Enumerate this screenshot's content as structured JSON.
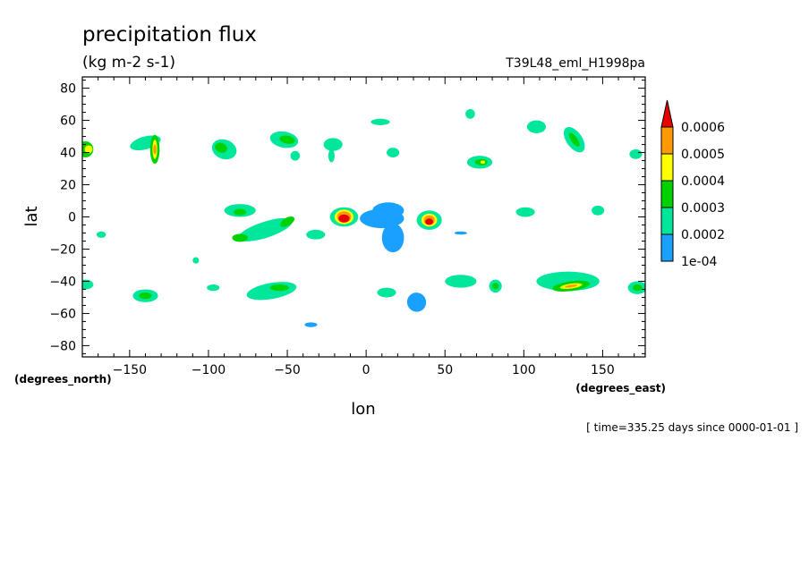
{
  "chart_data": {
    "type": "heatmap",
    "title": "precipitation flux",
    "units": "(kg m-2 s-1)",
    "run_label": "T39L48_eml_H1998pa",
    "xlabel": "lon",
    "ylabel": "lat",
    "x_units_label": "(degrees_east)",
    "y_units_label": "(degrees_north)",
    "time_label": "[ time=335.25 days since 0000-01-01 ]",
    "xlim": [
      -180,
      177
    ],
    "ylim": [
      -87,
      87
    ],
    "x_ticks": [
      -150,
      -100,
      -50,
      0,
      50,
      100,
      150
    ],
    "x_tick_labels": [
      "−150",
      "−100",
      "−50",
      "0",
      "50",
      "100",
      "150"
    ],
    "y_ticks": [
      80,
      60,
      40,
      20,
      0,
      -20,
      -40,
      -60,
      -80
    ],
    "y_tick_labels": [
      "80",
      "60",
      "40",
      "20",
      "0",
      "−20",
      "−40",
      "−60",
      "−80"
    ],
    "colorbar": {
      "levels": [
        "1e-04",
        "0.0002",
        "0.0003",
        "0.0004",
        "0.0005",
        "0.0006"
      ],
      "colors": [
        "#1aa0ff",
        "#00e69a",
        "#00d200",
        "#ffff00",
        "#ff9900",
        "#e60000"
      ],
      "extend": "max"
    },
    "regions": [
      {
        "lon": -178,
        "lat": 42,
        "rx": 5,
        "ry": 5,
        "rot": 0,
        "level": 2
      },
      {
        "lon": -176,
        "lat": 42,
        "rx": 2.5,
        "ry": 2.5,
        "rot": 0,
        "level": 3
      },
      {
        "lon": -140,
        "lat": 46,
        "rx": 10,
        "ry": 4,
        "rot": -15,
        "level": 1
      },
      {
        "lon": -134,
        "lat": 42,
        "rx": 3,
        "ry": 9,
        "rot": 0,
        "level": 2
      },
      {
        "lon": -134,
        "lat": 42,
        "rx": 1.5,
        "ry": 6,
        "rot": 0,
        "level": 3
      },
      {
        "lon": -134,
        "lat": 42,
        "rx": 1,
        "ry": 3,
        "rot": 0,
        "level": 4
      },
      {
        "lon": -90,
        "lat": 42,
        "rx": 8,
        "ry": 6,
        "rot": 20,
        "level": 1
      },
      {
        "lon": -92,
        "lat": 43,
        "rx": 4,
        "ry": 3,
        "rot": 20,
        "level": 2
      },
      {
        "lon": -52,
        "lat": 48,
        "rx": 9,
        "ry": 5,
        "rot": 10,
        "level": 1
      },
      {
        "lon": -50,
        "lat": 48,
        "rx": 5,
        "ry": 2.5,
        "rot": 10,
        "level": 2
      },
      {
        "lon": -45,
        "lat": 38,
        "rx": 3,
        "ry": 3,
        "rot": 0,
        "level": 1
      },
      {
        "lon": -21,
        "lat": 45,
        "rx": 6,
        "ry": 4,
        "rot": 0,
        "level": 1
      },
      {
        "lon": -22,
        "lat": 38,
        "rx": 2,
        "ry": 4,
        "rot": 0,
        "level": 1
      },
      {
        "lon": 9,
        "lat": 59,
        "rx": 6,
        "ry": 2,
        "rot": 0,
        "level": 1
      },
      {
        "lon": 17,
        "lat": 40,
        "rx": 4,
        "ry": 3,
        "rot": 0,
        "level": 1
      },
      {
        "lon": 72,
        "lat": 34,
        "rx": 8,
        "ry": 4,
        "rot": 0,
        "level": 1
      },
      {
        "lon": 73,
        "lat": 34,
        "rx": 4,
        "ry": 2,
        "rot": 0,
        "level": 2
      },
      {
        "lon": 74,
        "lat": 34,
        "rx": 1.5,
        "ry": 1,
        "rot": 0,
        "level": 3
      },
      {
        "lon": 66,
        "lat": 64,
        "rx": 3,
        "ry": 3,
        "rot": 0,
        "level": 1
      },
      {
        "lon": 108,
        "lat": 56,
        "rx": 6,
        "ry": 4,
        "rot": 0,
        "level": 1
      },
      {
        "lon": 132,
        "lat": 48,
        "rx": 5,
        "ry": 9,
        "rot": -35,
        "level": 1
      },
      {
        "lon": 132,
        "lat": 48,
        "rx": 2,
        "ry": 5,
        "rot": -35,
        "level": 2
      },
      {
        "lon": 171,
        "lat": 39,
        "rx": 4,
        "ry": 3,
        "rot": 0,
        "level": 1
      },
      {
        "lon": -80,
        "lat": 4,
        "rx": 10,
        "ry": 4,
        "rot": 0,
        "level": 1
      },
      {
        "lon": -80,
        "lat": 3,
        "rx": 4,
        "ry": 2,
        "rot": 0,
        "level": 2
      },
      {
        "lon": -64,
        "lat": -8,
        "rx": 18,
        "ry": 5,
        "rot": -18,
        "level": 1
      },
      {
        "lon": -50,
        "lat": -3,
        "rx": 5,
        "ry": 2.5,
        "rot": -30,
        "level": 2
      },
      {
        "lon": -80,
        "lat": -13,
        "rx": 5,
        "ry": 2.5,
        "rot": 0,
        "level": 2
      },
      {
        "lon": -32,
        "lat": -11,
        "rx": 6,
        "ry": 3,
        "rot": 0,
        "level": 1
      },
      {
        "lon": -14,
        "lat": 0,
        "rx": 9,
        "ry": 6,
        "rot": 0,
        "level": 1
      },
      {
        "lon": -14,
        "lat": 0,
        "rx": 6,
        "ry": 4.5,
        "rot": 0,
        "level": 3
      },
      {
        "lon": -14,
        "lat": 0,
        "rx": 4.5,
        "ry": 3.5,
        "rot": 0,
        "level": 4
      },
      {
        "lon": -14,
        "lat": -1,
        "rx": 3.5,
        "ry": 2.5,
        "rot": 0,
        "level": 5
      },
      {
        "lon": 10,
        "lat": -1,
        "rx": 14,
        "ry": 6,
        "rot": 0,
        "level": 0
      },
      {
        "lon": 17,
        "lat": -13,
        "rx": 7,
        "ry": 9,
        "rot": 0,
        "level": 0
      },
      {
        "lon": 14,
        "lat": 4,
        "rx": 10,
        "ry": 5,
        "rot": 0,
        "level": 0
      },
      {
        "lon": 40,
        "lat": -2,
        "rx": 8,
        "ry": 6,
        "rot": 0,
        "level": 1
      },
      {
        "lon": 40,
        "lat": -2,
        "rx": 5,
        "ry": 4,
        "rot": 0,
        "level": 3
      },
      {
        "lon": 40,
        "lat": -2,
        "rx": 3.5,
        "ry": 3,
        "rot": 0,
        "level": 4
      },
      {
        "lon": 40,
        "lat": -3,
        "rx": 2.5,
        "ry": 2,
        "rot": 0,
        "level": 5
      },
      {
        "lon": 60,
        "lat": -10,
        "rx": 4,
        "ry": 1,
        "rot": 0,
        "level": 0
      },
      {
        "lon": 101,
        "lat": 3,
        "rx": 6,
        "ry": 3,
        "rot": 0,
        "level": 1
      },
      {
        "lon": 147,
        "lat": 4,
        "rx": 4,
        "ry": 3,
        "rot": 0,
        "level": 1
      },
      {
        "lon": -168,
        "lat": -11,
        "rx": 3,
        "ry": 2,
        "rot": 0,
        "level": 1
      },
      {
        "lon": -108,
        "lat": -27,
        "rx": 2,
        "ry": 2,
        "rot": 0,
        "level": 1
      },
      {
        "lon": -178,
        "lat": -42,
        "rx": 5,
        "ry": 3,
        "rot": 0,
        "level": 1
      },
      {
        "lon": -140,
        "lat": -49,
        "rx": 8,
        "ry": 4,
        "rot": 0,
        "level": 1
      },
      {
        "lon": -140,
        "lat": -49,
        "rx": 4,
        "ry": 2,
        "rot": 0,
        "level": 2
      },
      {
        "lon": -97,
        "lat": -44,
        "rx": 4,
        "ry": 2,
        "rot": 0,
        "level": 1
      },
      {
        "lon": -60,
        "lat": -46,
        "rx": 16,
        "ry": 5,
        "rot": -10,
        "level": 1
      },
      {
        "lon": -55,
        "lat": -44,
        "rx": 6,
        "ry": 2,
        "rot": 0,
        "level": 2
      },
      {
        "lon": -35,
        "lat": -67,
        "rx": 4,
        "ry": 1.5,
        "rot": 0,
        "level": 0
      },
      {
        "lon": 13,
        "lat": -47,
        "rx": 6,
        "ry": 3,
        "rot": 0,
        "level": 1
      },
      {
        "lon": 32,
        "lat": -53,
        "rx": 6,
        "ry": 6,
        "rot": -30,
        "level": 0
      },
      {
        "lon": 60,
        "lat": -40,
        "rx": 10,
        "ry": 4,
        "rot": 0,
        "level": 1
      },
      {
        "lon": 82,
        "lat": -43,
        "rx": 4,
        "ry": 4,
        "rot": 0,
        "level": 1
      },
      {
        "lon": 82,
        "lat": -43,
        "rx": 2,
        "ry": 2,
        "rot": 0,
        "level": 2
      },
      {
        "lon": 128,
        "lat": -40,
        "rx": 20,
        "ry": 6,
        "rot": 0,
        "level": 1
      },
      {
        "lon": 130,
        "lat": -43,
        "rx": 12,
        "ry": 3,
        "rot": -8,
        "level": 2
      },
      {
        "lon": 130,
        "lat": -43,
        "rx": 7,
        "ry": 1.5,
        "rot": -8,
        "level": 3
      },
      {
        "lon": 130,
        "lat": -43,
        "rx": 4,
        "ry": 0.8,
        "rot": -8,
        "level": 4
      },
      {
        "lon": 172,
        "lat": -44,
        "rx": 6,
        "ry": 4,
        "rot": 0,
        "level": 1
      },
      {
        "lon": 172,
        "lat": -44,
        "rx": 3,
        "ry": 2,
        "rot": 0,
        "level": 2
      }
    ]
  }
}
